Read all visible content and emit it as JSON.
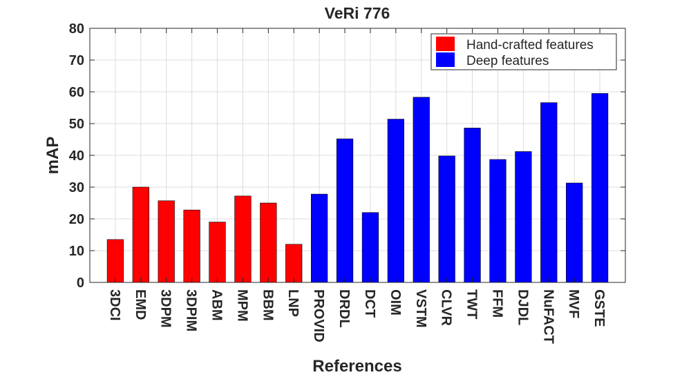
{
  "chart_data": {
    "type": "bar",
    "title": "VeRi 776",
    "xlabel": "References",
    "ylabel": "mAP",
    "ylim": [
      0,
      80
    ],
    "yticks": [
      0,
      10,
      20,
      30,
      40,
      50,
      60,
      70,
      80
    ],
    "grid": true,
    "legend_position": "top-right",
    "categories": [
      "3DCI",
      "EMD",
      "3DPM",
      "3DPIM",
      "ABM",
      "MPM",
      "BBM",
      "LNP",
      "PROVID",
      "DRDL",
      "DCT",
      "OIM",
      "VSTM",
      "CLVR",
      "TWT",
      "FFM",
      "DJDL",
      "NuFACT",
      "MVF",
      "GSTE"
    ],
    "values": [
      13.5,
      30,
      25.7,
      22.8,
      19,
      27.2,
      25,
      12,
      27.8,
      45.2,
      22,
      51.4,
      58.3,
      39.8,
      48.6,
      38.7,
      41.2,
      56.6,
      31.3,
      59.5
    ],
    "groups": [
      0,
      0,
      0,
      0,
      0,
      0,
      0,
      0,
      1,
      1,
      1,
      1,
      1,
      1,
      1,
      1,
      1,
      1,
      1,
      1
    ],
    "legend": [
      {
        "label": "Hand-crafted features",
        "color": "#ff0000"
      },
      {
        "label": "Deep features",
        "color": "#0000ff"
      }
    ]
  }
}
